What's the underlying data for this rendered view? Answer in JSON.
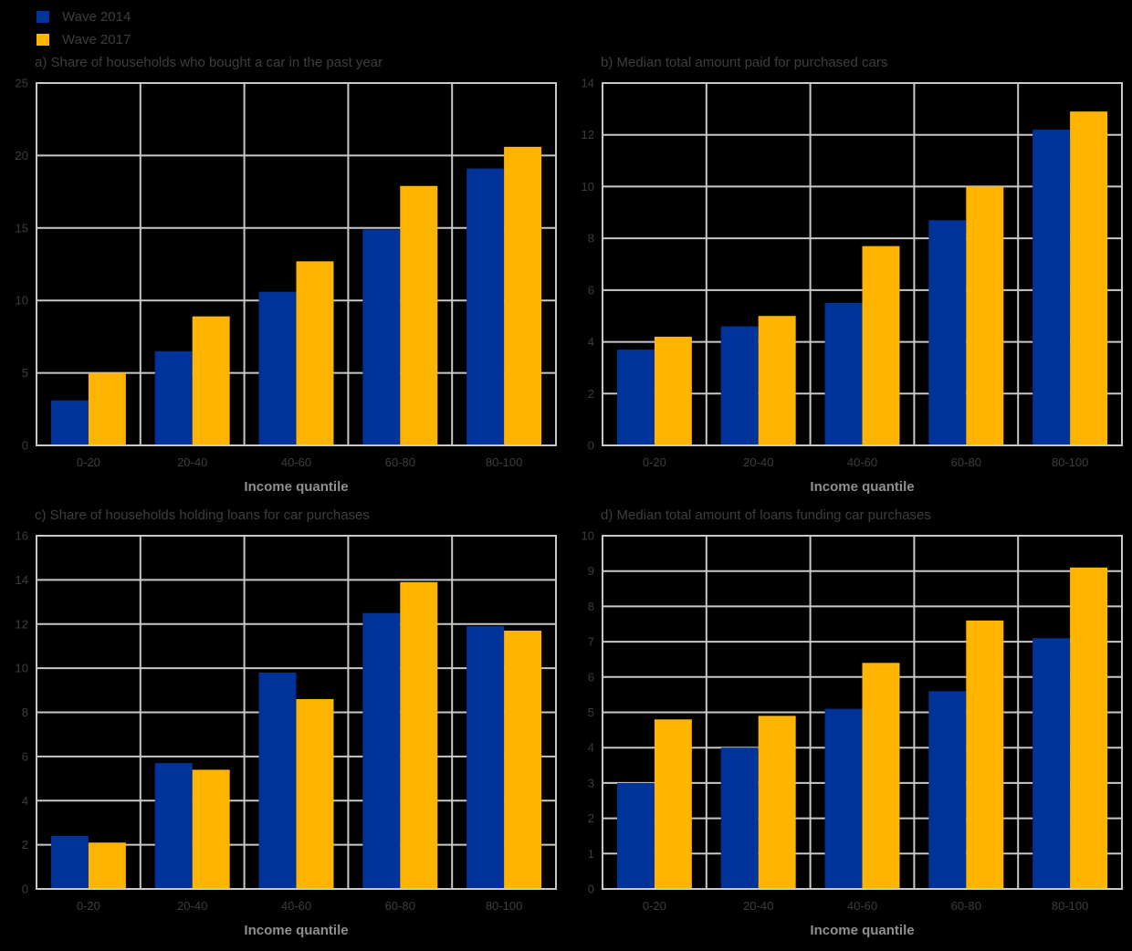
{
  "legend": {
    "items": [
      {
        "label": "Wave 2014",
        "color": "#003399"
      },
      {
        "label": "Wave 2017",
        "color": "#FFB400"
      }
    ]
  },
  "colors": {
    "wave2014_blue": "#003399",
    "wave2017_yellow": "#FFB400",
    "gridline": "#c8c8c8",
    "title_text": "#3d3d3d",
    "axis_title_text": "#8f8f8f",
    "background": "#000000"
  },
  "chart_data": [
    {
      "id": "a",
      "type": "bar",
      "title": "a) Share of households who bought a car in the past year",
      "categories": [
        "0-20",
        "20-40",
        "40-60",
        "60-80",
        "80-100"
      ],
      "series": [
        {
          "name": "Wave 2014",
          "color": "#003399",
          "values": [
            3.1,
            6.5,
            10.6,
            14.9,
            19.1
          ]
        },
        {
          "name": "Wave 2017",
          "color": "#FFB400",
          "values": [
            5.0,
            8.9,
            12.7,
            17.9,
            20.6
          ]
        }
      ],
      "xlabel": "Income quantile",
      "ylabel": "",
      "ylim": [
        0,
        25
      ],
      "y_ticks": [
        0,
        5,
        10,
        15,
        20,
        25
      ],
      "grid": true,
      "legend_position": "top-left of figure"
    },
    {
      "id": "b",
      "type": "bar",
      "title": "b) Median total amount paid for purchased cars",
      "categories": [
        "0-20",
        "20-40",
        "40-60",
        "60-80",
        "80-100"
      ],
      "series": [
        {
          "name": "Wave 2014",
          "color": "#003399",
          "values": [
            3.7,
            4.6,
            5.5,
            8.7,
            12.2
          ]
        },
        {
          "name": "Wave 2017",
          "color": "#FFB400",
          "values": [
            4.2,
            5.0,
            7.7,
            10.0,
            12.9
          ]
        }
      ],
      "xlabel": "Income quantile",
      "ylabel": "",
      "ylim": [
        0,
        14
      ],
      "y_ticks": [
        0,
        2,
        4,
        6,
        8,
        10,
        12,
        14
      ],
      "grid": true,
      "legend_position": "top-left of figure"
    },
    {
      "id": "c",
      "type": "bar",
      "title": "c) Share of households holding loans for car purchases",
      "categories": [
        "0-20",
        "20-40",
        "40-60",
        "60-80",
        "80-100"
      ],
      "series": [
        {
          "name": "Wave 2014",
          "color": "#003399",
          "values": [
            2.4,
            5.7,
            9.8,
            12.5,
            11.9
          ]
        },
        {
          "name": "Wave 2017",
          "color": "#FFB400",
          "values": [
            2.1,
            5.4,
            8.6,
            13.9,
            11.7
          ]
        }
      ],
      "xlabel": "Income quantile",
      "ylabel": "",
      "ylim": [
        0,
        16
      ],
      "y_ticks": [
        0,
        2,
        4,
        6,
        8,
        10,
        12,
        14,
        16
      ],
      "grid": true,
      "legend_position": "top-left of figure"
    },
    {
      "id": "d",
      "type": "bar",
      "title": "d) Median total amount of loans funding car purchases",
      "categories": [
        "0-20",
        "20-40",
        "40-60",
        "60-80",
        "80-100"
      ],
      "series": [
        {
          "name": "Wave 2014",
          "color": "#003399",
          "values": [
            3.0,
            4.0,
            5.1,
            5.6,
            7.1
          ]
        },
        {
          "name": "Wave 2017",
          "color": "#FFB400",
          "values": [
            4.8,
            4.9,
            6.4,
            7.6,
            9.1
          ]
        }
      ],
      "xlabel": "Income quantile",
      "ylabel": "",
      "ylim": [
        0,
        10
      ],
      "y_ticks": [
        0,
        1,
        2,
        3,
        4,
        5,
        6,
        7,
        8,
        9,
        10
      ],
      "grid": true,
      "legend_position": "top-left of figure"
    }
  ]
}
